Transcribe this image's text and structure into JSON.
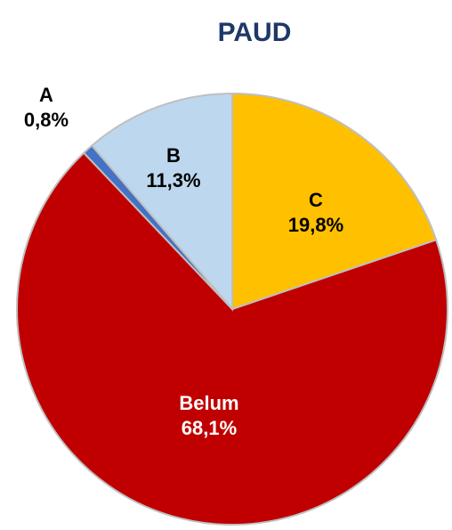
{
  "chart_data": {
    "type": "pie",
    "title": "PAUD",
    "categories": [
      "C",
      "Belum",
      "A",
      "B"
    ],
    "values": [
      19.8,
      68.1,
      0.8,
      11.3
    ],
    "value_labels": [
      "19,8%",
      "68,1%",
      "0,8%",
      "11,3%"
    ],
    "colors": [
      "#ffc000",
      "#c00000",
      "#4472c4",
      "#bdd7ee"
    ]
  }
}
